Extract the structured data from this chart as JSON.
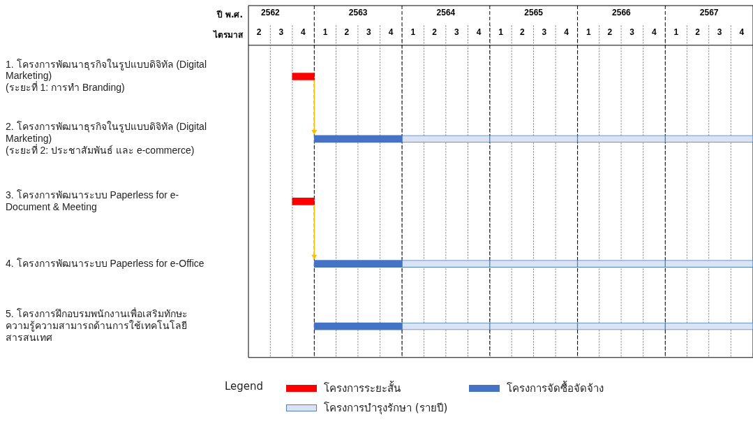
{
  "chart_data": {
    "type": "bar",
    "orientation": "horizontal",
    "categories": [
      "1. โครงการพัฒนาธุรกิจในรูปแบบดิจิทัล (Digital\nMarketing)\n(ระยะที่ 1: การทำ Branding)",
      "2. โครงการพัฒนาธุรกิจในรูปแบบดิจิทัล (Digital\nMarketing)\n(ระยะที่ 2: ประชาสัมพันธ์ และ e-commerce)",
      "3. โครงการพัฒนาระบบ Paperless for e-\nDocument & Meeting",
      "4. โครงการพัฒนาระบบ Paperless for e-Office",
      "5. โครงการฝึกอบรมพนักงานเพื่อเสริมทักษะ\nความรู้ความสามารถด้านการใช้เทคโนโลยี\nสารสนเทศ"
    ],
    "series": [
      {
        "name": "โครงการระยะสั้น",
        "color": "#ff0000",
        "base": [
          2562.75,
          null,
          2562.75,
          null,
          null
        ],
        "values": [
          0.25,
          null,
          0.25,
          null,
          null
        ]
      },
      {
        "name": "โครงการจัดซื้อจัดจ้าง",
        "color": "#4472c4",
        "base": [
          null,
          2563,
          null,
          2563,
          2563
        ],
        "values": [
          null,
          1,
          null,
          1,
          1
        ]
      },
      {
        "name": "โครงการบำรุงรักษา (รายปี)",
        "color": "#dae3f3",
        "base": [
          null,
          2564,
          null,
          2564,
          2564
        ],
        "values": [
          null,
          1,
          null,
          1,
          1
        ]
      },
      {
        "color": "#dae3f3",
        "base": [
          null,
          2565,
          null,
          2565,
          2565
        ],
        "values": [
          null,
          1,
          null,
          1,
          1
        ]
      },
      {
        "color": "#dae3f3",
        "base": [
          null,
          2566,
          null,
          2566,
          2566
        ],
        "values": [
          null,
          1,
          null,
          1,
          1
        ]
      },
      {
        "color": "#dae3f3",
        "base": [
          null,
          2567,
          null,
          2567,
          2567
        ],
        "values": [
          null,
          1,
          null,
          1,
          1
        ]
      }
    ],
    "xlabel": "ปี พ.ศ.",
    "x2label": "ไตรมาส",
    "legend_title": "Legend",
    "legend": "bottom",
    "grid": "x",
    "xlim": [
      2562.25,
      2568
    ],
    "x2lim": [
      "2562-04-01",
      "2568-01-01"
    ],
    "xticks": [
      {
        "value": 2562.5,
        "label": "2562"
      },
      {
        "value": 2563,
        "label": null
      },
      {
        "value": 2563.5,
        "label": "2563"
      },
      {
        "value": 2564,
        "label": null
      },
      {
        "value": 2564.5,
        "label": "2564"
      },
      {
        "value": 2565,
        "label": null
      },
      {
        "value": 2565.5,
        "label": "2565"
      },
      {
        "value": 2566,
        "label": null
      },
      {
        "value": 2566.5,
        "label": "2566"
      },
      {
        "value": 2567,
        "label": null
      },
      {
        "value": 2567.5,
        "label": "2567"
      }
    ],
    "x2ticks": [
      {
        "value": "2562-05-15",
        "label": "2"
      },
      {
        "value": "2562-07-01",
        "label": null
      },
      {
        "value": "2562-08-15",
        "label": "3"
      },
      {
        "value": "2562-10-01",
        "label": null
      },
      {
        "value": "2562-11-15",
        "label": "4"
      },
      {
        "value": "2563-01-01",
        "label": null
      },
      {
        "value": "2563-02-15",
        "label": "1"
      },
      {
        "value": "2563-04-01",
        "label": null
      },
      {
        "value": "2563-05-15",
        "label": "2"
      },
      {
        "value": "2563-07-01",
        "label": null
      },
      {
        "value": "2563-08-15",
        "label": "3"
      },
      {
        "value": "2563-10-01",
        "label": null
      },
      {
        "value": "2563-11-15",
        "label": "4"
      },
      {
        "value": "2564-01-01",
        "label": null
      },
      {
        "value": "2564-02-15",
        "label": "1"
      },
      {
        "value": "2564-04-01",
        "label": null
      },
      {
        "value": "2564-05-15",
        "label": "2"
      },
      {
        "value": "2564-07-01",
        "label": null
      },
      {
        "value": "2564-08-15",
        "label": "3"
      },
      {
        "value": "2564-10-01",
        "label": null
      },
      {
        "value": "2564-11-15",
        "label": "4"
      },
      {
        "value": "2565-01-01",
        "label": null
      },
      {
        "value": "2565-02-15",
        "label": "1"
      },
      {
        "value": "2565-04-01",
        "label": null
      },
      {
        "value": "2565-05-15",
        "label": "2"
      },
      {
        "value": "2565-07-01",
        "label": null
      },
      {
        "value": "2565-08-15",
        "label": "3"
      },
      {
        "value": "2565-10-01",
        "label": null
      },
      {
        "value": "2565-11-15",
        "label": "4"
      },
      {
        "value": "2566-01-01",
        "label": null
      },
      {
        "value": "2566-02-15",
        "label": "1"
      },
      {
        "value": "2566-04-01",
        "label": null
      },
      {
        "value": "2566-05-15",
        "label": "2"
      },
      {
        "value": "2566-07-01",
        "label": null
      },
      {
        "value": "2566-08-15",
        "label": "3"
      },
      {
        "value": "2566-10-01",
        "label": null
      },
      {
        "value": "2566-11-15",
        "label": "4"
      },
      {
        "value": "2567-01-01",
        "label": null
      },
      {
        "value": "2567-02-15",
        "label": "1"
      },
      {
        "value": "2567-04-01",
        "label": null
      },
      {
        "value": "2567-05-15",
        "label": "2"
      },
      {
        "value": "2567-07-01",
        "label": null
      },
      {
        "value": "2567-08-15",
        "label": "3"
      },
      {
        "value": "2567-10-01",
        "label": null
      },
      {
        "value": "2567-11-15",
        "label": "4"
      }
    ]
  }
}
